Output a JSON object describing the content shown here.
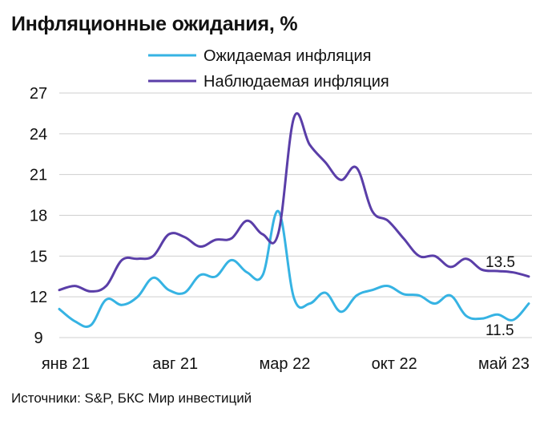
{
  "title": "Инфляционные ожидания, %",
  "source": "Источники: S&P, БКС Мир инвестиций",
  "colors": {
    "expected": "#36b3e3",
    "observed": "#5a3ea8",
    "grid": "#cfcfcf"
  },
  "chart_data": {
    "type": "line",
    "title": "Инфляционные ожидания, %",
    "x": [
      "янв 21",
      "фев 21",
      "мар 21",
      "апр 21",
      "май 21",
      "июн 21",
      "июл 21",
      "авг 21",
      "сен 21",
      "окт 21",
      "ноя 21",
      "дек 21",
      "янв 22",
      "фев 22",
      "мар 22",
      "апр 22",
      "май 22",
      "июн 22",
      "июл 22",
      "авг 22",
      "сен 22",
      "окт 22",
      "ноя 22",
      "дек 22",
      "янв 23",
      "фев 23",
      "мар 23",
      "апр 23",
      "май 23",
      "июн 23",
      "июл 23"
    ],
    "x_ticks": [
      "янв 21",
      "авг 21",
      "мар 22",
      "окт 22",
      "май 23"
    ],
    "ylim": [
      9,
      27
    ],
    "y_ticks": [
      9,
      12,
      15,
      18,
      21,
      24,
      27
    ],
    "grid": "horizontal",
    "legend_position": "top",
    "series": [
      {
        "name": "Ожидаемая инфляция",
        "color": "#36b3e3",
        "values": [
          11.1,
          10.2,
          9.9,
          11.8,
          11.4,
          12.0,
          13.4,
          12.5,
          12.3,
          13.6,
          13.5,
          14.7,
          13.8,
          13.6,
          18.3,
          11.9,
          11.5,
          12.3,
          10.9,
          12.1,
          12.5,
          12.8,
          12.2,
          12.1,
          11.5,
          12.1,
          10.6,
          10.4,
          10.7,
          10.3,
          11.5
        ],
        "end_label": "11.5"
      },
      {
        "name": "Наблюдаемая инфляция",
        "color": "#5a3ea8",
        "values": [
          12.5,
          12.8,
          12.4,
          12.8,
          14.7,
          14.8,
          15.0,
          16.6,
          16.4,
          15.7,
          16.2,
          16.3,
          17.6,
          16.6,
          16.7,
          25.2,
          23.2,
          21.9,
          20.6,
          21.5,
          18.3,
          17.6,
          16.3,
          15.0,
          15.0,
          14.2,
          14.8,
          14.0,
          13.9,
          13.8,
          13.5
        ],
        "end_label": "13.5"
      }
    ]
  }
}
